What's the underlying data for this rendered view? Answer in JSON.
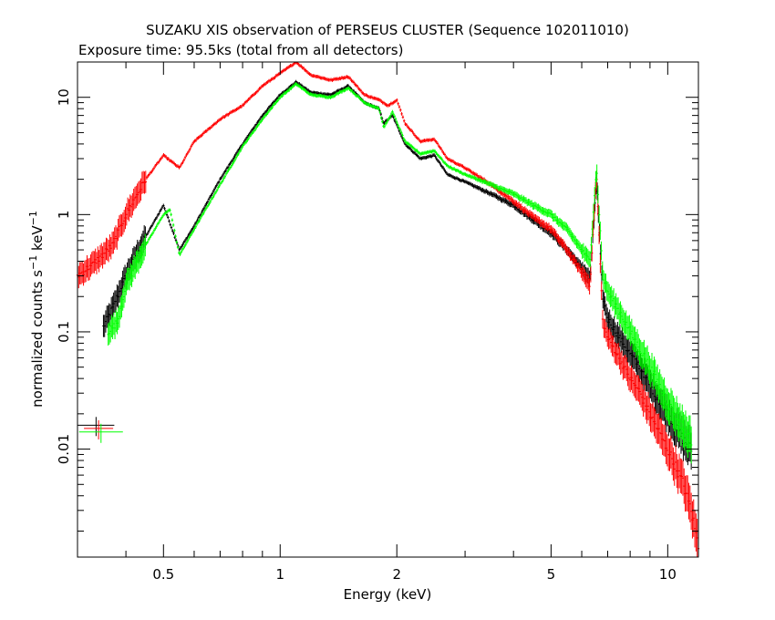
{
  "chart_data": {
    "type": "scatter",
    "title": "SUZAKU XIS observation of PERSEUS CLUSTER (Sequence 102011010)",
    "subtitle": "Exposure time: 95.5ks (total from all detectors)",
    "xlabel": "Energy (keV)",
    "ylabel_main": "normalized counts s",
    "ylabel_sup1": "−1",
    "ylabel_mid": " keV",
    "ylabel_sup2": "−1",
    "x_scale": "log",
    "y_scale": "log",
    "xlim": [
      0.3,
      12
    ],
    "ylim": [
      0.0012,
      20
    ],
    "x_ticks": [
      {
        "value": 0.5,
        "label": "0.5"
      },
      {
        "value": 1,
        "label": "1"
      },
      {
        "value": 2,
        "label": "2"
      },
      {
        "value": 5,
        "label": "5"
      },
      {
        "value": 10,
        "label": "10"
      }
    ],
    "y_ticks": [
      {
        "value": 0.01,
        "label": "0.01"
      },
      {
        "value": 0.1,
        "label": "0.1"
      },
      {
        "value": 1,
        "label": "1"
      },
      {
        "value": 10,
        "label": "10"
      }
    ],
    "colors": {
      "black": "#000000",
      "red": "#ff0000",
      "green": "#00ff00"
    },
    "series": [
      {
        "color": "#000000",
        "x": [
          0.35,
          0.37,
          0.4,
          0.45,
          0.5,
          0.55,
          0.6,
          0.7,
          0.8,
          0.9,
          1.0,
          1.1,
          1.2,
          1.35,
          1.5,
          1.65,
          1.8,
          1.85,
          1.95,
          2.1,
          2.3,
          2.5,
          2.7,
          3.0,
          3.5,
          4.0,
          4.5,
          5.0,
          5.5,
          6.0,
          6.3,
          6.55,
          6.8,
          7.0,
          7.5,
          8.0,
          8.5,
          9.0,
          10.0,
          11.0,
          11.5
        ],
        "y": [
          0.11,
          0.16,
          0.3,
          0.65,
          1.2,
          0.5,
          0.8,
          2.0,
          4.0,
          7.0,
          10.5,
          13.5,
          11.0,
          10.5,
          12.5,
          9.0,
          8.0,
          6.0,
          7.0,
          4.0,
          3.0,
          3.2,
          2.2,
          1.9,
          1.5,
          1.2,
          0.9,
          0.7,
          0.5,
          0.35,
          0.28,
          2.0,
          0.2,
          0.13,
          0.09,
          0.065,
          0.05,
          0.035,
          0.02,
          0.012,
          0.01
        ]
      },
      {
        "color": "#ff0000",
        "x": [
          0.3,
          0.33,
          0.37,
          0.4,
          0.45,
          0.5,
          0.55,
          0.6,
          0.7,
          0.8,
          0.9,
          1.0,
          1.1,
          1.2,
          1.35,
          1.5,
          1.65,
          1.8,
          1.9,
          2.0,
          2.1,
          2.3,
          2.5,
          2.7,
          3.0,
          3.5,
          4.0,
          4.5,
          5.0,
          5.5,
          6.0,
          6.3,
          6.55,
          6.8,
          7.0,
          7.5,
          8.0,
          8.5,
          9.0,
          10.0,
          11.0,
          11.5,
          12.0
        ],
        "y": [
          0.3,
          0.38,
          0.55,
          1.0,
          2.0,
          3.2,
          2.5,
          4.2,
          6.5,
          8.5,
          12.5,
          16.0,
          20.0,
          15.5,
          14.0,
          15.0,
          10.5,
          9.5,
          8.5,
          9.5,
          6.0,
          4.2,
          4.4,
          3.0,
          2.5,
          1.8,
          1.3,
          0.95,
          0.75,
          0.5,
          0.32,
          0.25,
          2.2,
          0.12,
          0.09,
          0.06,
          0.04,
          0.03,
          0.02,
          0.01,
          0.005,
          0.003,
          0.0015
        ]
      },
      {
        "color": "#00ff00",
        "x": [
          0.36,
          0.38,
          0.4,
          0.45,
          0.5,
          0.52,
          0.55,
          0.6,
          0.7,
          0.8,
          0.9,
          1.0,
          1.1,
          1.2,
          1.35,
          1.5,
          1.65,
          1.8,
          1.85,
          1.95,
          2.1,
          2.3,
          2.5,
          2.7,
          3.0,
          3.5,
          4.0,
          4.5,
          5.0,
          5.5,
          6.0,
          6.3,
          6.55,
          6.8,
          7.0,
          7.5,
          8.0,
          8.5,
          9.0,
          10.0,
          11.0,
          11.5
        ],
        "y": [
          0.1,
          0.12,
          0.25,
          0.55,
          1.0,
          1.1,
          0.45,
          0.75,
          1.8,
          3.8,
          6.5,
          10.0,
          13.0,
          10.5,
          10.0,
          12.0,
          9.0,
          8.0,
          5.5,
          7.5,
          4.2,
          3.3,
          3.5,
          2.6,
          2.2,
          1.8,
          1.5,
          1.2,
          1.0,
          0.75,
          0.5,
          0.4,
          2.5,
          0.3,
          0.22,
          0.15,
          0.1,
          0.07,
          0.05,
          0.025,
          0.015,
          0.012
        ]
      }
    ],
    "marker_samples": [
      {
        "color": "#000000",
        "x": 0.335,
        "y": 0.016
      },
      {
        "color": "#ff0000",
        "x": 0.34,
        "y": 0.015
      },
      {
        "color": "#00ff00",
        "x": 0.345,
        "y": 0.014
      }
    ]
  }
}
